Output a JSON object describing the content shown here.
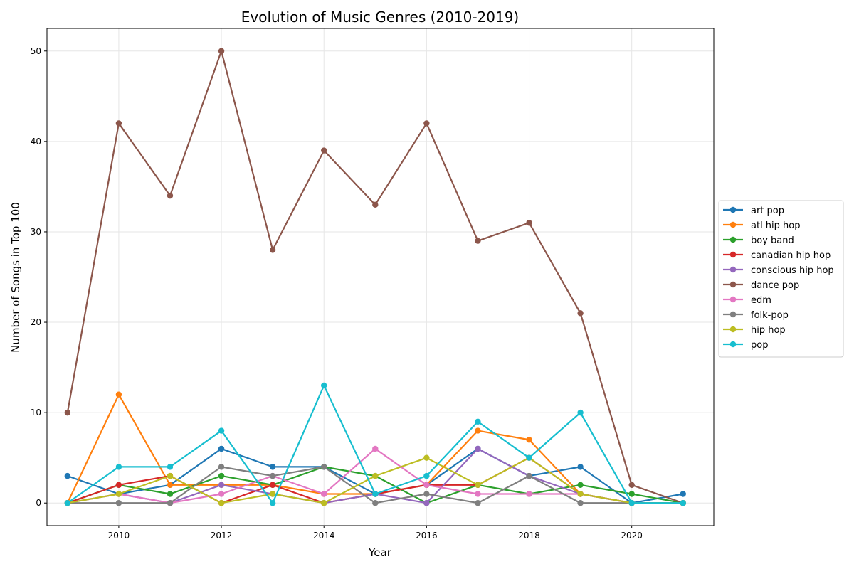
{
  "chart_data": {
    "type": "line",
    "title": "Evolution of Music Genres (2010-2019)",
    "xlabel": "Year",
    "ylabel": "Number of Songs in Top 100",
    "x": [
      2009,
      2010,
      2011,
      2012,
      2013,
      2014,
      2015,
      2016,
      2017,
      2018,
      2019,
      2020,
      2021
    ],
    "xlim": [
      2008.6,
      2021.6
    ],
    "ylim": [
      -2.5,
      52.5
    ],
    "xticks": [
      2010,
      2012,
      2014,
      2016,
      2018,
      2020
    ],
    "yticks": [
      0,
      10,
      20,
      30,
      40,
      50
    ],
    "grid": true,
    "legend_position": "center-right outside",
    "series": [
      {
        "name": "art pop",
        "color": "#1f77b4",
        "values": [
          3,
          1,
          2,
          6,
          4,
          4,
          1,
          2,
          6,
          3,
          4,
          0,
          1
        ]
      },
      {
        "name": "atl hip hop",
        "color": "#ff7f0e",
        "values": [
          0,
          12,
          2,
          2,
          2,
          1,
          1,
          2,
          8,
          7,
          1,
          0,
          0
        ]
      },
      {
        "name": "boy band",
        "color": "#2ca02c",
        "values": [
          0,
          2,
          1,
          3,
          2,
          4,
          3,
          0,
          2,
          1,
          2,
          1,
          0
        ]
      },
      {
        "name": "canadian hip hop",
        "color": "#d62728",
        "values": [
          0,
          2,
          3,
          0,
          2,
          0,
          1,
          2,
          2,
          5,
          1,
          0,
          0
        ]
      },
      {
        "name": "conscious hip hop",
        "color": "#9467bd",
        "values": [
          0,
          1,
          0,
          2,
          1,
          0,
          1,
          0,
          6,
          3,
          1,
          0,
          0
        ]
      },
      {
        "name": "dance pop",
        "color": "#8c564b",
        "values": [
          10,
          42,
          34,
          50,
          28,
          39,
          33,
          42,
          29,
          31,
          21,
          2,
          0
        ]
      },
      {
        "name": "edm",
        "color": "#e377c2",
        "values": [
          0,
          1,
          0,
          1,
          3,
          1,
          6,
          2,
          1,
          1,
          1,
          0,
          0
        ]
      },
      {
        "name": "folk-pop",
        "color": "#7f7f7f",
        "values": [
          0,
          0,
          0,
          4,
          3,
          4,
          0,
          1,
          0,
          3,
          0,
          0,
          0
        ]
      },
      {
        "name": "hip hop",
        "color": "#bcbd22",
        "values": [
          0,
          1,
          3,
          0,
          1,
          0,
          3,
          5,
          2,
          5,
          1,
          0,
          0
        ]
      },
      {
        "name": "pop",
        "color": "#17becf",
        "values": [
          0,
          4,
          4,
          8,
          0,
          13,
          1,
          3,
          9,
          5,
          10,
          0,
          0
        ]
      }
    ]
  }
}
